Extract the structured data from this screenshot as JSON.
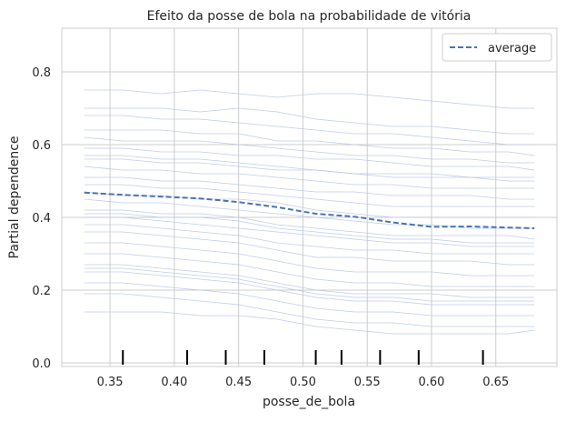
{
  "chart_data": {
    "type": "line",
    "title": "Efeito da posse de bola na probabilidade de vitória",
    "xlabel": "posse_de_bola",
    "ylabel": "Partial dependence",
    "xlim": [
      0.3125,
      0.6975
    ],
    "ylim": [
      -0.01,
      0.92
    ],
    "xticks": [
      0.35,
      0.4,
      0.45,
      0.5,
      0.55,
      0.6,
      0.65
    ],
    "xtick_labels": [
      "0.35",
      "0.40",
      "0.45",
      "0.50",
      "0.55",
      "0.60",
      "0.65"
    ],
    "yticks": [
      0.0,
      0.2,
      0.4,
      0.6,
      0.8
    ],
    "ytick_labels": [
      "0.0",
      "0.2",
      "0.4",
      "0.6",
      "0.8"
    ],
    "grid": true,
    "legend": {
      "position": "top-right",
      "entries": [
        "average"
      ]
    },
    "colors": {
      "ice": "#b4c4e4",
      "average": "#4c72b0",
      "grid": "#cccccc",
      "rug": "#000000"
    },
    "x": [
      0.33,
      0.36,
      0.39,
      0.42,
      0.45,
      0.48,
      0.51,
      0.54,
      0.57,
      0.6,
      0.63,
      0.66,
      0.68
    ],
    "series": [
      {
        "name": "average",
        "style": "dashed",
        "values": [
          0.468,
          0.462,
          0.457,
          0.452,
          0.442,
          0.428,
          0.41,
          0.402,
          0.386,
          0.374,
          0.375,
          0.372,
          0.37
        ]
      }
    ],
    "ice_curves": [
      [
        0.75,
        0.75,
        0.74,
        0.75,
        0.74,
        0.73,
        0.74,
        0.74,
        0.73,
        0.72,
        0.71,
        0.7,
        0.7
      ],
      [
        0.7,
        0.7,
        0.7,
        0.69,
        0.7,
        0.69,
        0.67,
        0.66,
        0.65,
        0.65,
        0.64,
        0.63,
        0.63
      ],
      [
        0.68,
        0.68,
        0.67,
        0.67,
        0.66,
        0.65,
        0.64,
        0.63,
        0.63,
        0.62,
        0.61,
        0.6,
        0.6
      ],
      [
        0.64,
        0.64,
        0.64,
        0.63,
        0.63,
        0.61,
        0.61,
        0.6,
        0.59,
        0.59,
        0.58,
        0.58,
        0.57
      ],
      [
        0.62,
        0.61,
        0.61,
        0.61,
        0.6,
        0.59,
        0.58,
        0.57,
        0.57,
        0.56,
        0.56,
        0.55,
        0.55
      ],
      [
        0.59,
        0.59,
        0.58,
        0.58,
        0.57,
        0.57,
        0.56,
        0.56,
        0.55,
        0.54,
        0.54,
        0.54,
        0.53
      ],
      [
        0.56,
        0.56,
        0.55,
        0.55,
        0.54,
        0.53,
        0.53,
        0.52,
        0.51,
        0.51,
        0.51,
        0.5,
        0.5
      ],
      [
        0.54,
        0.53,
        0.53,
        0.52,
        0.52,
        0.51,
        0.5,
        0.49,
        0.49,
        0.48,
        0.48,
        0.48,
        0.48
      ],
      [
        0.51,
        0.51,
        0.5,
        0.5,
        0.49,
        0.48,
        0.47,
        0.47,
        0.46,
        0.46,
        0.46,
        0.45,
        0.45
      ],
      [
        0.49,
        0.49,
        0.48,
        0.48,
        0.47,
        0.46,
        0.45,
        0.44,
        0.43,
        0.43,
        0.43,
        0.43,
        0.43
      ],
      [
        0.47,
        0.46,
        0.46,
        0.45,
        0.45,
        0.44,
        0.42,
        0.41,
        0.4,
        0.4,
        0.4,
        0.4,
        0.4
      ],
      [
        0.45,
        0.44,
        0.44,
        0.43,
        0.42,
        0.41,
        0.4,
        0.39,
        0.38,
        0.38,
        0.37,
        0.37,
        0.37
      ],
      [
        0.42,
        0.42,
        0.41,
        0.41,
        0.4,
        0.38,
        0.37,
        0.36,
        0.35,
        0.35,
        0.35,
        0.35,
        0.34
      ],
      [
        0.4,
        0.4,
        0.39,
        0.38,
        0.37,
        0.36,
        0.35,
        0.34,
        0.33,
        0.33,
        0.32,
        0.32,
        0.32
      ],
      [
        0.38,
        0.38,
        0.37,
        0.36,
        0.35,
        0.33,
        0.32,
        0.31,
        0.31,
        0.3,
        0.3,
        0.3,
        0.3
      ],
      [
        0.36,
        0.36,
        0.35,
        0.34,
        0.33,
        0.31,
        0.29,
        0.29,
        0.28,
        0.28,
        0.28,
        0.27,
        0.27
      ],
      [
        0.33,
        0.33,
        0.32,
        0.31,
        0.3,
        0.28,
        0.26,
        0.25,
        0.25,
        0.25,
        0.24,
        0.24,
        0.24
      ],
      [
        0.3,
        0.3,
        0.29,
        0.28,
        0.27,
        0.25,
        0.23,
        0.22,
        0.22,
        0.21,
        0.21,
        0.21,
        0.21
      ],
      [
        0.27,
        0.27,
        0.26,
        0.25,
        0.24,
        0.22,
        0.2,
        0.19,
        0.19,
        0.19,
        0.18,
        0.18,
        0.18
      ],
      [
        0.25,
        0.25,
        0.24,
        0.23,
        0.22,
        0.2,
        0.18,
        0.17,
        0.17,
        0.16,
        0.16,
        0.16,
        0.16
      ],
      [
        0.22,
        0.22,
        0.21,
        0.2,
        0.19,
        0.17,
        0.15,
        0.14,
        0.14,
        0.13,
        0.13,
        0.13,
        0.13
      ],
      [
        0.19,
        0.19,
        0.18,
        0.17,
        0.16,
        0.14,
        0.12,
        0.11,
        0.11,
        0.1,
        0.1,
        0.1,
        0.1
      ],
      [
        0.14,
        0.14,
        0.14,
        0.13,
        0.13,
        0.12,
        0.1,
        0.09,
        0.08,
        0.08,
        0.08,
        0.08,
        0.09
      ],
      [
        0.57,
        0.57,
        0.56,
        0.56,
        0.55,
        0.54,
        0.53,
        0.52,
        0.52,
        0.52,
        0.51,
        0.51,
        0.51
      ],
      [
        0.41,
        0.41,
        0.4,
        0.4,
        0.39,
        0.37,
        0.36,
        0.35,
        0.34,
        0.34,
        0.33,
        0.33,
        0.33
      ],
      [
        0.26,
        0.26,
        0.25,
        0.24,
        0.23,
        0.21,
        0.19,
        0.18,
        0.18,
        0.17,
        0.17,
        0.17,
        0.17
      ]
    ],
    "rug_x": [
      0.36,
      0.41,
      0.44,
      0.47,
      0.51,
      0.53,
      0.56,
      0.59,
      0.64
    ]
  }
}
